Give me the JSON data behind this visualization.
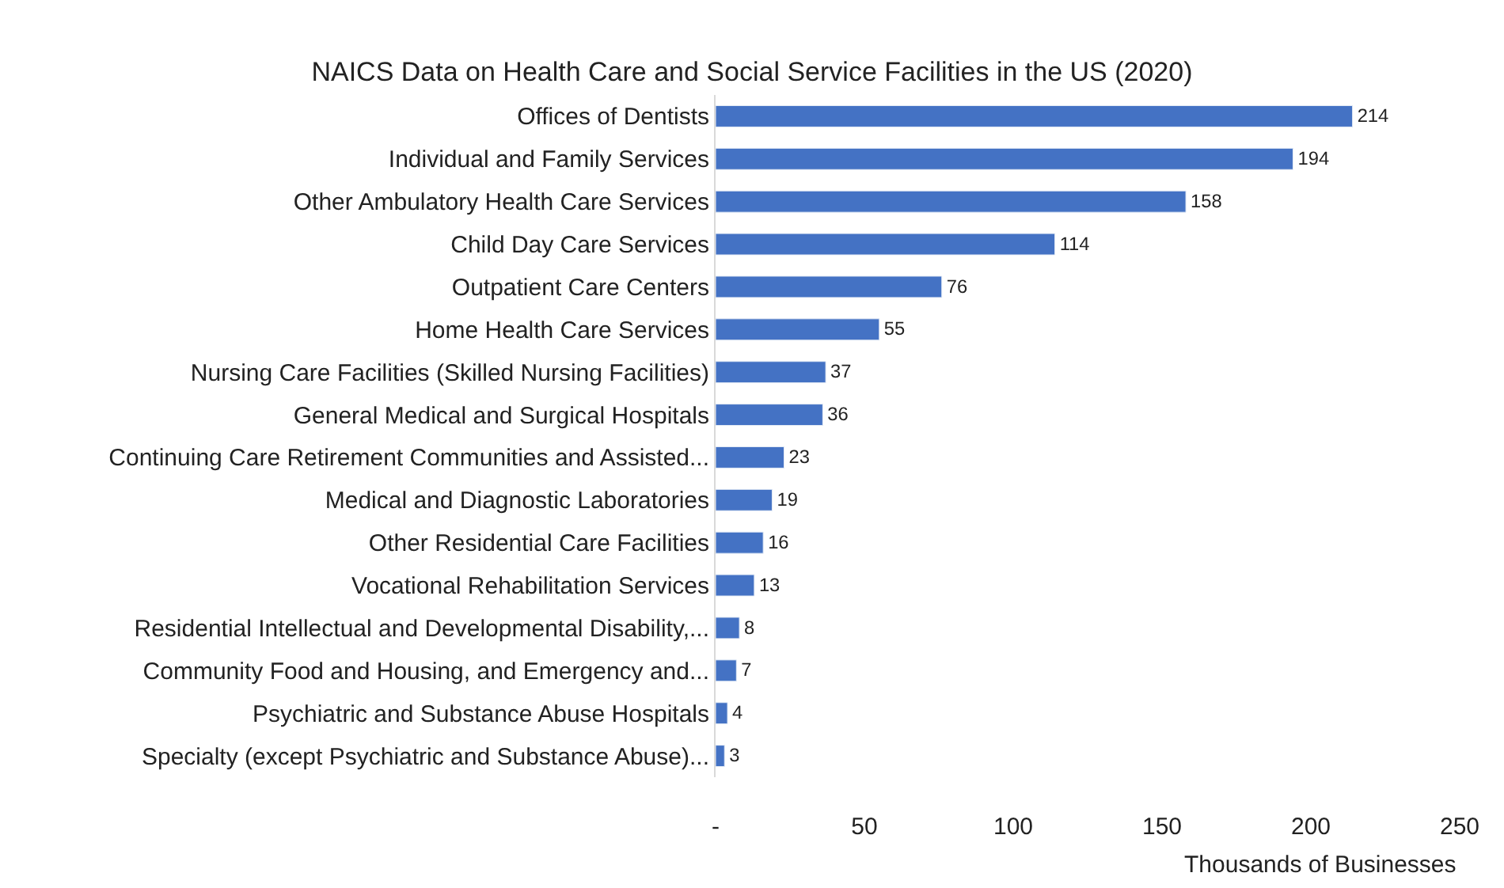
{
  "chart_data": {
    "type": "bar",
    "orientation": "horizontal",
    "title": "NAICS Data on Health Care and Social Service Facilities in the US (2020)",
    "xlabel": "Thousands of Businesses",
    "categories": [
      "Offices of Dentists",
      "Individual and Family Services",
      "Other Ambulatory Health Care Services",
      "Child Day Care Services",
      "Outpatient Care Centers",
      "Home Health Care Services",
      "Nursing Care Facilities (Skilled Nursing Facilities)",
      "General Medical and Surgical Hospitals",
      "Continuing Care Retirement Communities and Assisted...",
      "Medical and Diagnostic Laboratories",
      "Other Residential Care Facilities",
      "Vocational Rehabilitation Services",
      "Residential Intellectual and Developmental Disability,...",
      "Community Food and Housing, and Emergency and...",
      "Psychiatric and Substance Abuse Hospitals",
      "Specialty (except Psychiatric and Substance Abuse)..."
    ],
    "values": [
      214,
      194,
      158,
      114,
      76,
      55,
      37,
      36,
      23,
      19,
      16,
      13,
      8,
      7,
      4,
      3
    ],
    "color": "#4472c4",
    "data_labels": true,
    "xlim": [
      0,
      250
    ],
    "xticks": [
      {
        "value": 0,
        "label": "-"
      },
      50,
      100,
      150,
      200,
      250
    ],
    "legend": false
  }
}
